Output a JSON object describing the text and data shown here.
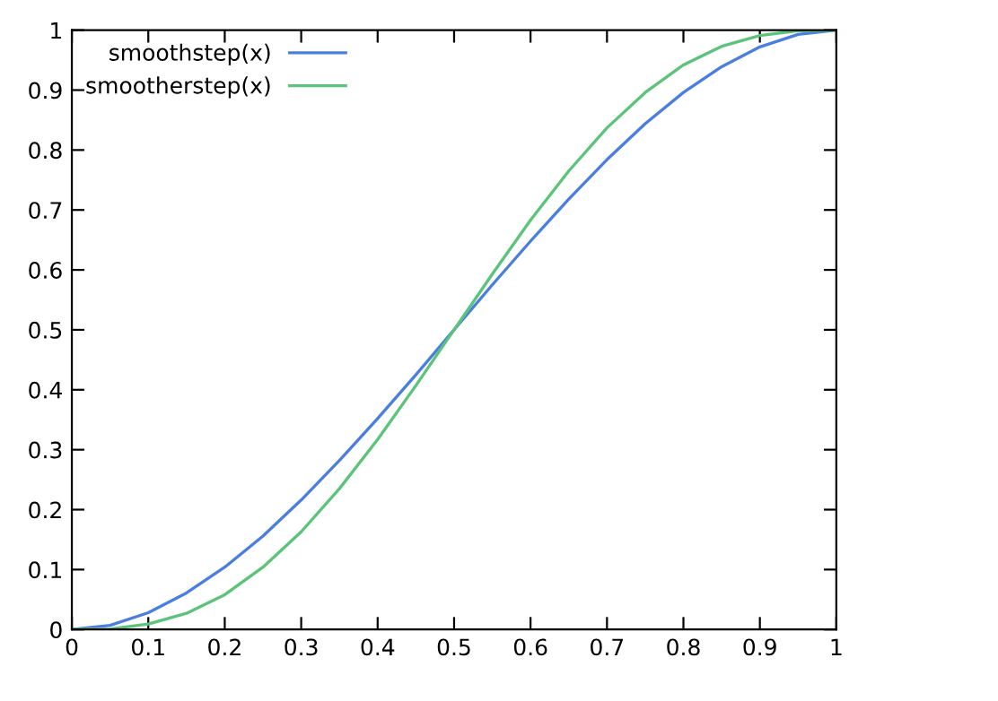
{
  "chart_data": {
    "type": "line",
    "x": [
      0,
      0.05,
      0.1,
      0.15,
      0.2,
      0.25,
      0.3,
      0.35,
      0.4,
      0.45,
      0.5,
      0.55,
      0.6,
      0.65,
      0.7,
      0.75,
      0.8,
      0.85,
      0.9,
      0.95,
      1
    ],
    "series": [
      {
        "name": "smoothstep(x)",
        "color": "#4a7fe0",
        "values": [
          0,
          0.007,
          0.028,
          0.061,
          0.104,
          0.156,
          0.216,
          0.282,
          0.352,
          0.425,
          0.5,
          0.575,
          0.648,
          0.718,
          0.784,
          0.844,
          0.896,
          0.939,
          0.972,
          0.993,
          1
        ]
      },
      {
        "name": "smootherstep(x)",
        "color": "#5cc47a",
        "values": [
          0,
          0.001,
          0.009,
          0.027,
          0.058,
          0.104,
          0.163,
          0.235,
          0.317,
          0.407,
          0.5,
          0.593,
          0.683,
          0.765,
          0.837,
          0.896,
          0.942,
          0.973,
          0.991,
          0.999,
          1
        ]
      }
    ],
    "xlim": [
      0,
      1
    ],
    "ylim": [
      0,
      1
    ],
    "xticks": [
      0,
      0.1,
      0.2,
      0.3,
      0.4,
      0.5,
      0.6,
      0.7,
      0.8,
      0.9,
      1
    ],
    "yticks": [
      0,
      0.1,
      0.2,
      0.3,
      0.4,
      0.5,
      0.6,
      0.7,
      0.8,
      0.9,
      1
    ],
    "grid": false,
    "legend": "top left",
    "marker": "none",
    "line_style": "solid"
  }
}
